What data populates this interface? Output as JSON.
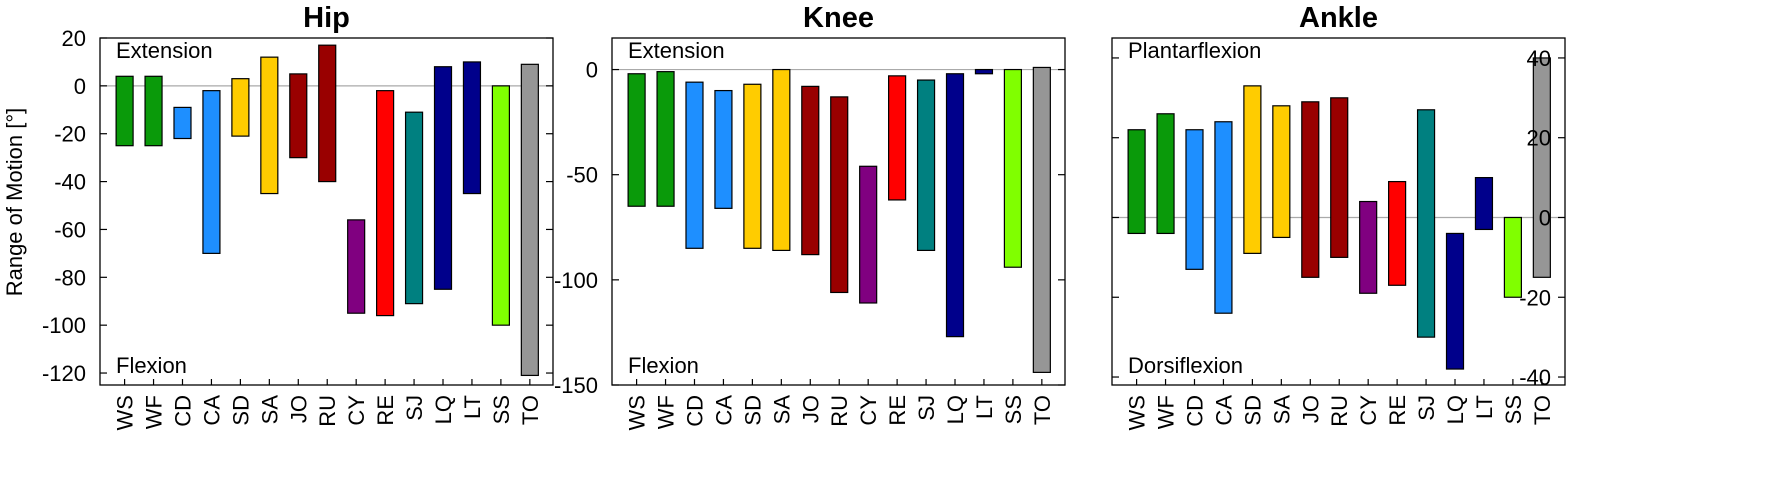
{
  "ylabel": "Range of Motion [°]",
  "chart_data": [
    {
      "type": "floating-bar",
      "title": "Hip",
      "ylim": [
        -125,
        20
      ],
      "yticks": [
        20,
        0,
        -20,
        -40,
        -60,
        -80,
        -100,
        -120
      ],
      "top_annotation": "Extension",
      "bottom_annotation": "Flexion",
      "categories": [
        "WS",
        "WF",
        "CD",
        "CA",
        "SD",
        "SA",
        "JO",
        "RU",
        "CY",
        "RE",
        "SJ",
        "LQ",
        "LT",
        "SS",
        "TO"
      ],
      "ranges": [
        [
          -25,
          4
        ],
        [
          -25,
          4
        ],
        [
          -22,
          -9
        ],
        [
          -70,
          -2
        ],
        [
          -21,
          3
        ],
        [
          -45,
          12
        ],
        [
          -30,
          5
        ],
        [
          -40,
          17
        ],
        [
          -95,
          -56
        ],
        [
          -96,
          -2
        ],
        [
          -91,
          -11
        ],
        [
          -85,
          8
        ],
        [
          -45,
          10
        ],
        [
          -100,
          0
        ],
        [
          -121,
          9
        ]
      ],
      "colors": [
        "#0a9a0a",
        "#0a9a0a",
        "#1e8fff",
        "#1e8fff",
        "#ffcc00",
        "#ffcc00",
        "#990000",
        "#990000",
        "#800080",
        "#ff0000",
        "#008080",
        "#00008b",
        "#00008b",
        "#80ff00",
        "#969696"
      ]
    },
    {
      "type": "floating-bar",
      "title": "Knee",
      "ylim": [
        -150,
        15
      ],
      "yticks": [
        0,
        -50,
        -100,
        -150
      ],
      "top_annotation": "Extension",
      "bottom_annotation": "Flexion",
      "categories": [
        "WS",
        "WF",
        "CD",
        "CA",
        "SD",
        "SA",
        "JO",
        "RU",
        "CY",
        "RE",
        "SJ",
        "LQ",
        "LT",
        "SS",
        "TO"
      ],
      "ranges": [
        [
          -65,
          -2
        ],
        [
          -65,
          -1
        ],
        [
          -85,
          -6
        ],
        [
          -66,
          -10
        ],
        [
          -85,
          -7
        ],
        [
          -86,
          0
        ],
        [
          -88,
          -8
        ],
        [
          -106,
          -13
        ],
        [
          -111,
          -46
        ],
        [
          -62,
          -3
        ],
        [
          -86,
          -5
        ],
        [
          -127,
          -2
        ],
        [
          -2,
          0
        ],
        [
          -94,
          0
        ],
        [
          -144,
          1
        ]
      ],
      "colors": [
        "#0a9a0a",
        "#0a9a0a",
        "#1e8fff",
        "#1e8fff",
        "#ffcc00",
        "#ffcc00",
        "#990000",
        "#990000",
        "#800080",
        "#ff0000",
        "#008080",
        "#00008b",
        "#00008b",
        "#80ff00",
        "#969696"
      ]
    },
    {
      "type": "floating-bar",
      "title": "Ankle",
      "ylim": [
        -42,
        45
      ],
      "yticks": [
        40,
        20,
        0,
        -20,
        -40
      ],
      "top_annotation": "Plantarflexion",
      "bottom_annotation": "Dorsiflexion",
      "categories": [
        "WS",
        "WF",
        "CD",
        "CA",
        "SD",
        "SA",
        "JO",
        "RU",
        "CY",
        "RE",
        "SJ",
        "LQ",
        "LT",
        "SS",
        "TO"
      ],
      "ranges": [
        [
          -4,
          22
        ],
        [
          -4,
          26
        ],
        [
          -13,
          22
        ],
        [
          -24,
          24
        ],
        [
          -9,
          33
        ],
        [
          -5,
          28
        ],
        [
          -15,
          29
        ],
        [
          -10,
          30
        ],
        [
          -19,
          4
        ],
        [
          -17,
          9
        ],
        [
          -30,
          27
        ],
        [
          -38,
          -4
        ],
        [
          -3,
          10
        ],
        [
          -20,
          0
        ],
        [
          -15,
          40
        ]
      ],
      "colors": [
        "#0a9a0a",
        "#0a9a0a",
        "#1e8fff",
        "#1e8fff",
        "#ffcc00",
        "#ffcc00",
        "#990000",
        "#990000",
        "#800080",
        "#ff0000",
        "#008080",
        "#00008b",
        "#00008b",
        "#80ff00",
        "#969696"
      ]
    }
  ]
}
